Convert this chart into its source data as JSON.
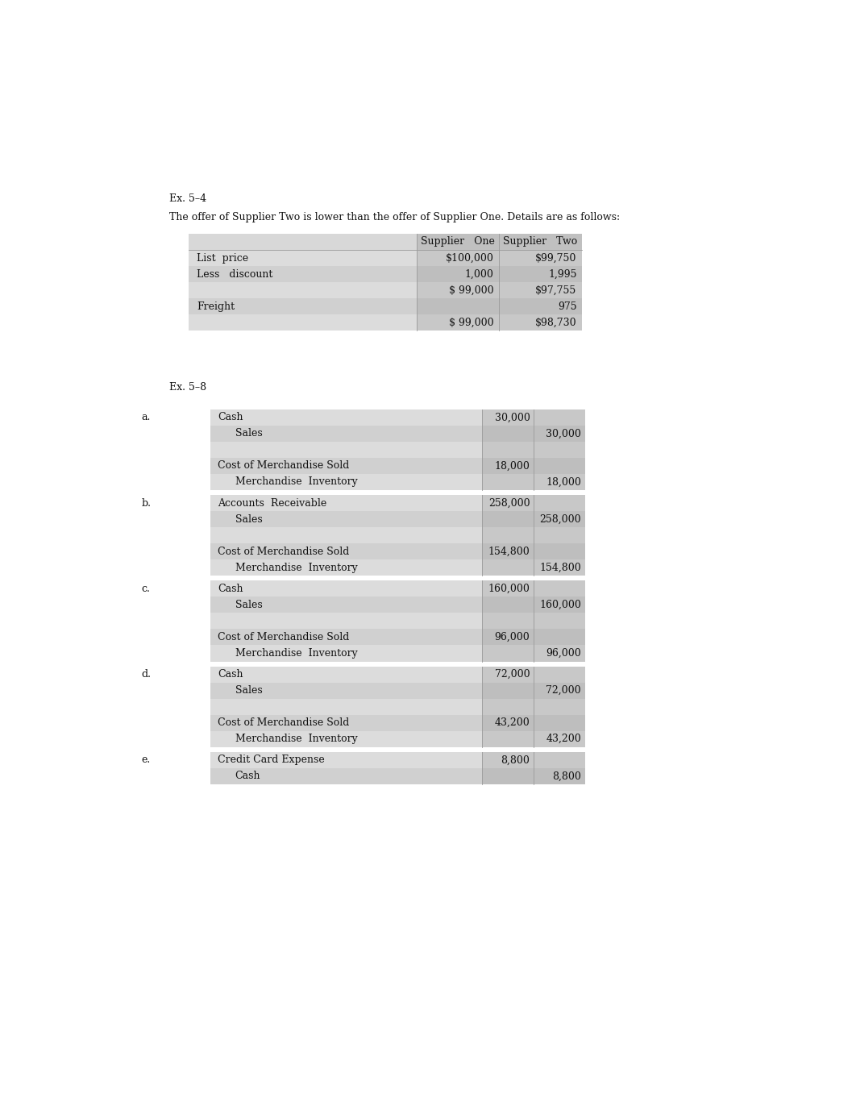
{
  "bg_color": "#ffffff",
  "ex54_title": "Ex. 5–4",
  "ex54_subtitle": "The offer of Supplier Two is lower than the offer of Supplier One. Details are as follows:",
  "ex54_col_headers": [
    "Supplier   One",
    "Supplier   Two"
  ],
  "ex54_rows": [
    {
      "label": "List  price",
      "col1": "$100,000",
      "col2": "$99,750"
    },
    {
      "label": "Less   discount",
      "col1": "1,000",
      "col2": "1,995"
    },
    {
      "label": "",
      "col1": "$ 99,000",
      "col2": "$97,755"
    },
    {
      "label": "Freight",
      "col1": "",
      "col2": "975"
    },
    {
      "label": "",
      "col1": "$ 99,000",
      "col2": "$98,730"
    }
  ],
  "ex58_title": "Ex. 5–8",
  "ex58_sections": [
    {
      "label": "a.",
      "entries": [
        {
          "account": "Cash",
          "indent": false,
          "debit": "30,000",
          "credit": ""
        },
        {
          "account": "Sales",
          "indent": true,
          "debit": "",
          "credit": "30,000"
        },
        {
          "account": "",
          "indent": false,
          "debit": "",
          "credit": ""
        },
        {
          "account": "Cost of Merchandise Sold",
          "indent": false,
          "debit": "18,000",
          "credit": ""
        },
        {
          "account": "Merchandise  Inventory",
          "indent": true,
          "debit": "",
          "credit": "18,000"
        }
      ]
    },
    {
      "label": "b.",
      "entries": [
        {
          "account": "Accounts  Receivable",
          "indent": false,
          "debit": "258,000",
          "credit": ""
        },
        {
          "account": "Sales",
          "indent": true,
          "debit": "",
          "credit": "258,000"
        },
        {
          "account": "",
          "indent": false,
          "debit": "",
          "credit": ""
        },
        {
          "account": "Cost of Merchandise Sold",
          "indent": false,
          "debit": "154,800",
          "credit": ""
        },
        {
          "account": "Merchandise  Inventory",
          "indent": true,
          "debit": "",
          "credit": "154,800"
        }
      ]
    },
    {
      "label": "c.",
      "entries": [
        {
          "account": "Cash",
          "indent": false,
          "debit": "160,000",
          "credit": ""
        },
        {
          "account": "Sales",
          "indent": true,
          "debit": "",
          "credit": "160,000"
        },
        {
          "account": "",
          "indent": false,
          "debit": "",
          "credit": ""
        },
        {
          "account": "Cost of Merchandise Sold",
          "indent": false,
          "debit": "96,000",
          "credit": ""
        },
        {
          "account": "Merchandise  Inventory",
          "indent": true,
          "debit": "",
          "credit": "96,000"
        }
      ]
    },
    {
      "label": "d.",
      "entries": [
        {
          "account": "Cash",
          "indent": false,
          "debit": "72,000",
          "credit": ""
        },
        {
          "account": "Sales",
          "indent": true,
          "debit": "",
          "credit": "72,000"
        },
        {
          "account": "",
          "indent": false,
          "debit": "",
          "credit": ""
        },
        {
          "account": "Cost of Merchandise Sold",
          "indent": false,
          "debit": "43,200",
          "credit": ""
        },
        {
          "account": "Merchandise  Inventory",
          "indent": true,
          "debit": "",
          "credit": "43,200"
        }
      ]
    },
    {
      "label": "e.",
      "entries": [
        {
          "account": "Credit Card Expense",
          "indent": false,
          "debit": "8,800",
          "credit": ""
        },
        {
          "account": "Cash",
          "indent": true,
          "debit": "",
          "credit": "8,800"
        }
      ]
    }
  ],
  "font_size": 9.0,
  "font_family": "DejaVu Serif",
  "row_colors_label": [
    "#dcdcdc",
    "#d0d0d0"
  ],
  "row_colors_data": [
    "#c8c8c8",
    "#bebebe"
  ],
  "header_bg": "#c0c0c0",
  "sep_color": "#999999"
}
